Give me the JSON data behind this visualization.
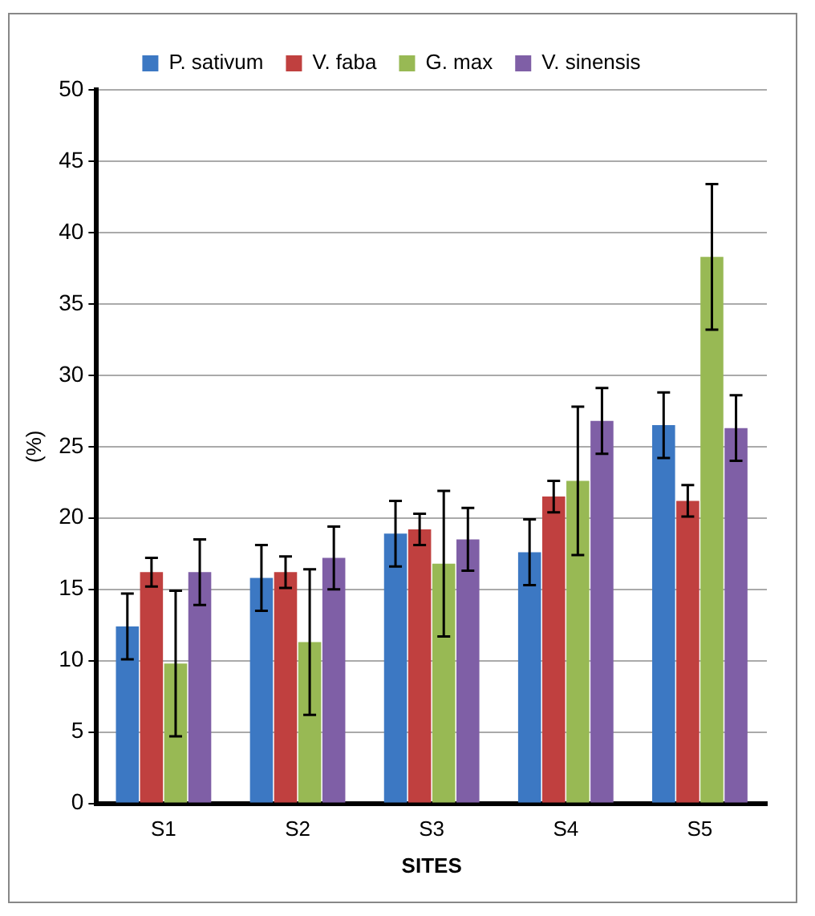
{
  "chart_data": {
    "type": "bar",
    "xlabel": "SITES",
    "ylabel": "(%)",
    "categories": [
      "S1",
      "S2",
      "S3",
      "S4",
      "S5"
    ],
    "series": [
      {
        "name": "P. sativum",
        "color": "#3c78c3",
        "values": [
          12.4,
          15.8,
          18.9,
          17.6,
          26.5
        ],
        "errors": [
          2.3,
          2.3,
          2.3,
          2.3,
          2.3
        ]
      },
      {
        "name": "V. faba",
        "color": "#c0403f",
        "values": [
          16.2,
          16.2,
          19.2,
          21.5,
          21.2
        ],
        "errors": [
          1,
          1.1,
          1.1,
          1.1,
          1.1
        ]
      },
      {
        "name": "G. max",
        "color": "#98b954",
        "values": [
          9.8,
          11.3,
          16.8,
          22.6,
          38.3
        ],
        "errors": [
          5.1,
          5.1,
          5.1,
          5.2,
          5.1
        ]
      },
      {
        "name": "V. sinensis",
        "color": "#7f5fa6",
        "values": [
          16.2,
          17.2,
          18.5,
          26.8,
          26.3
        ],
        "errors": [
          2.3,
          2.2,
          2.2,
          2.3,
          2.3
        ]
      }
    ],
    "ylim": [
      0,
      50
    ],
    "yticks": [
      0,
      5,
      10,
      15,
      20,
      25,
      30,
      35,
      40,
      45,
      50
    ],
    "grid": "y",
    "legend": "top"
  }
}
